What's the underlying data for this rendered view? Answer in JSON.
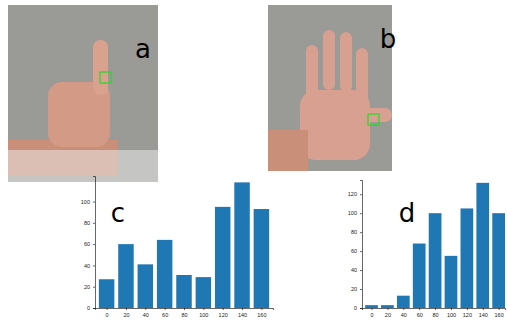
{
  "images": [
    {
      "label": "a"
    },
    {
      "label": "b"
    }
  ],
  "chart_data": [
    {
      "type": "bar",
      "annotations": [
        "c"
      ],
      "x": [
        0,
        20,
        40,
        60,
        80,
        100,
        120,
        140,
        160
      ],
      "values": [
        27,
        60,
        41,
        64,
        31,
        29,
        95,
        118,
        93
      ],
      "color": "#1f77b4",
      "xlim": [
        -12,
        172
      ],
      "xticks": [
        0,
        20,
        40,
        60,
        80,
        100,
        120,
        140,
        160
      ],
      "ylim": [
        0,
        124
      ],
      "yticks": [
        0,
        20,
        40,
        60,
        80,
        100
      ]
    },
    {
      "type": "bar",
      "annotations": [
        "d"
      ],
      "x": [
        0,
        20,
        40,
        60,
        80,
        100,
        120,
        140,
        160
      ],
      "values": [
        3,
        3,
        13,
        68,
        100,
        55,
        105,
        132,
        100
      ],
      "color": "#1f77b4",
      "xlim": [
        -12,
        168
      ],
      "xticks": [
        0,
        20,
        40,
        60,
        80,
        100,
        120,
        140,
        160
      ],
      "ylim": [
        0,
        135
      ],
      "yticks": [
        0,
        20,
        40,
        60,
        80,
        100,
        120
      ]
    }
  ]
}
